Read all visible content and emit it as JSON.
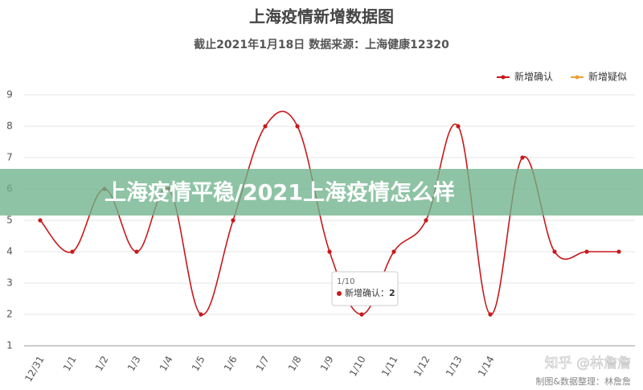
{
  "chart_data": {
    "type": "line",
    "title": "上海疫情新增数据图",
    "subtitle": "截止2021年1月18日 数据来源：上海健康12320",
    "categories": [
      "12/31",
      "1/1",
      "1/2",
      "1/3",
      "1/4",
      "1/5",
      "1/6",
      "1/7",
      "1/8",
      "1/9",
      "1/10",
      "1/11",
      "1/12",
      "1/13",
      "1/14",
      null,
      null,
      null,
      null
    ],
    "series": [
      {
        "name": "新增确认",
        "color": "#c8191c",
        "values": [
          5,
          4,
          6,
          4,
          6,
          2,
          5,
          8,
          8,
          4,
          2,
          4,
          5,
          8,
          2,
          7,
          4,
          4,
          4
        ]
      },
      {
        "name": "新增疑似",
        "color": "#f0a030",
        "values": [
          null,
          null,
          null,
          null,
          null,
          null,
          null,
          null,
          null,
          null,
          null,
          null,
          null,
          null,
          null,
          null,
          null,
          null,
          null
        ]
      }
    ],
    "ylim": [
      1,
      9
    ],
    "yticks": [
      1,
      2,
      3,
      4,
      5,
      6,
      7,
      8,
      9
    ],
    "grid": true,
    "legend": "top-right",
    "tooltip": {
      "title": "1/10",
      "label": "新增确认：",
      "value": 2
    },
    "banner": "上海疫情平稳/2021上海疫情怎么样",
    "watermarks": [
      "知乎 @林詹詹",
      "制图&数据整理：林詹詹"
    ]
  }
}
